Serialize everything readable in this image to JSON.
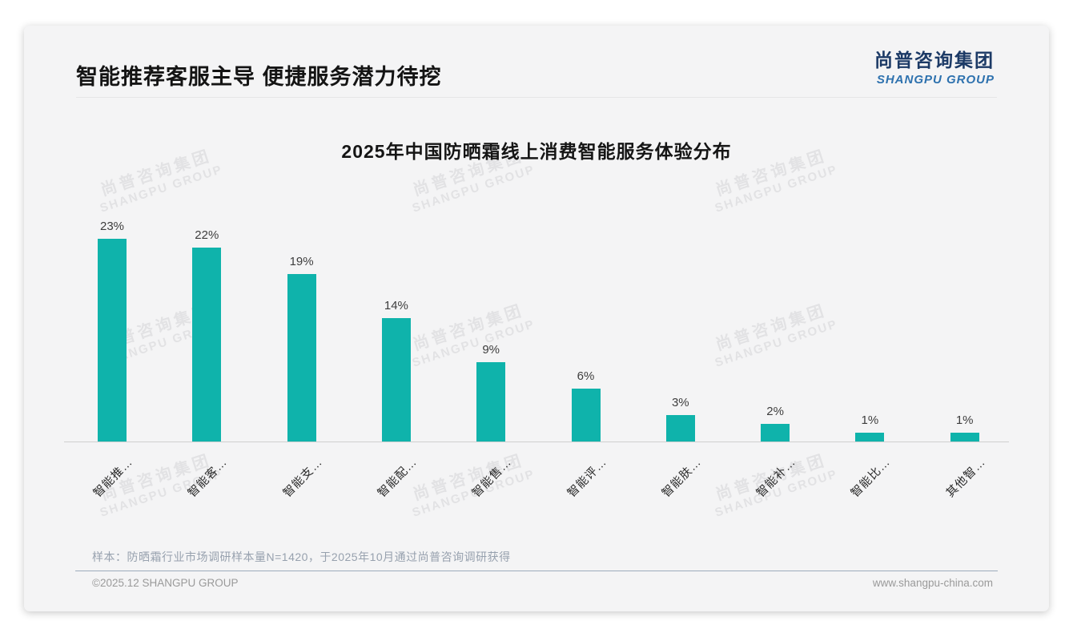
{
  "page": {
    "header": {
      "title": "智能推荐客服主导 便捷服务潜力待挖",
      "logo": {
        "cn": "尚普咨询集团",
        "en": "SHANGPU GROUP"
      }
    },
    "watermark": {
      "cn": "尚普咨询集团",
      "en": "SHANGPU GROUP"
    },
    "note": "样本：防晒霜行业市场调研样本量N=1420，于2025年10月通过尚普咨询调研获得",
    "footer": {
      "left": "©2025.12 SHANGPU GROUP",
      "right": "www.shangpu-china.com"
    }
  },
  "chart_data": {
    "type": "bar",
    "title": "2025年中国防晒霜线上消费智能服务体验分布",
    "categories": [
      "智能推…",
      "智能客…",
      "智能支…",
      "智能配…",
      "智能售…",
      "智能评…",
      "智能肤…",
      "智能补…",
      "智能比…",
      "其他智…"
    ],
    "values": [
      23,
      22,
      19,
      14,
      9,
      6,
      3,
      2,
      1,
      1
    ],
    "unit": "%",
    "value_labels": [
      "23%",
      "22%",
      "19%",
      "14%",
      "9%",
      "6%",
      "3%",
      "2%",
      "1%",
      "1%"
    ],
    "bar_color": "#0FB3AB",
    "ylim": [
      0,
      25
    ],
    "grid": false,
    "legend_position": "none",
    "xlabel": "",
    "ylabel": ""
  }
}
